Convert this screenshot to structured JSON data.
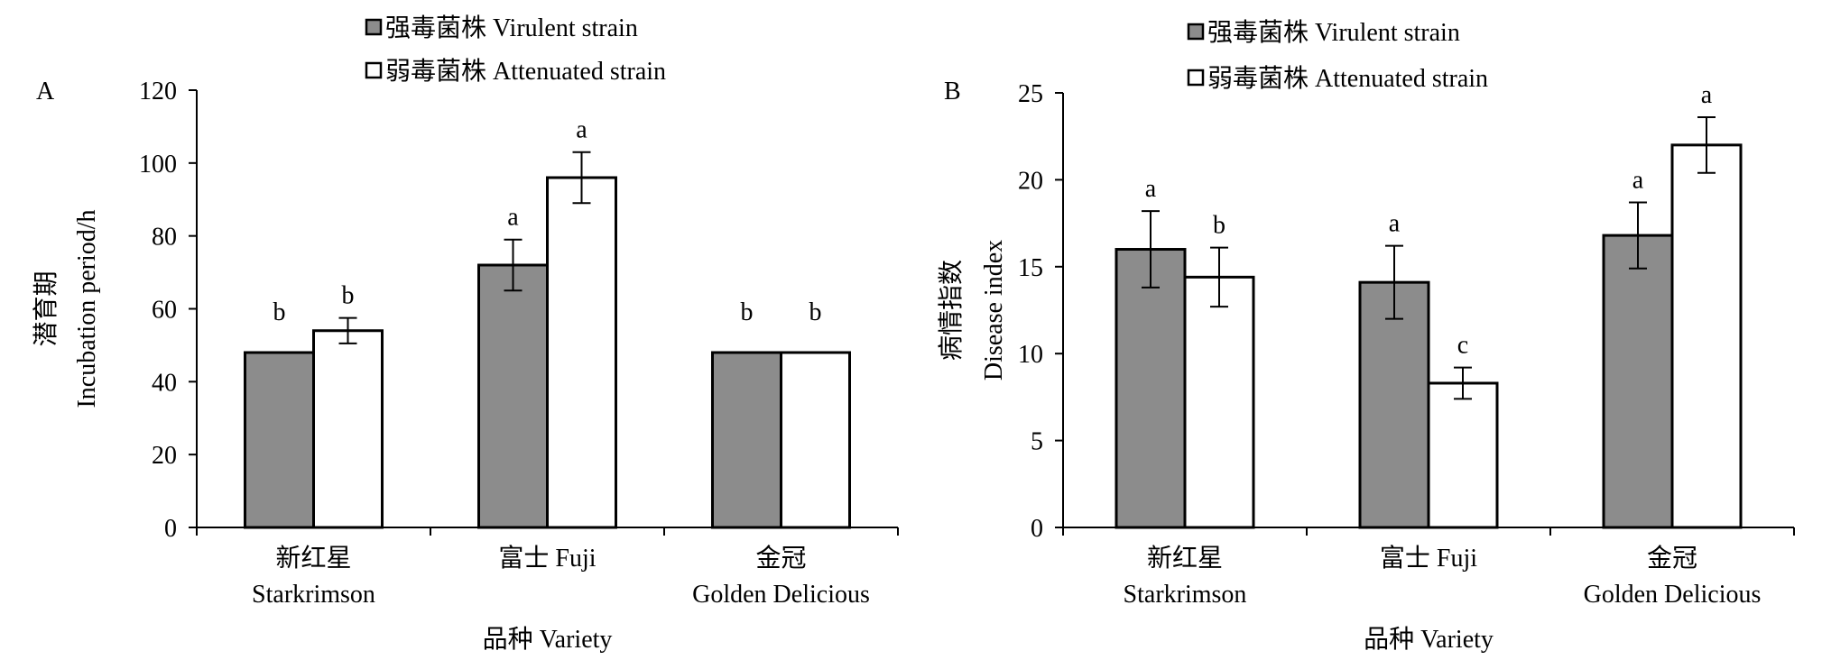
{
  "chart_data": [
    {
      "type": "bar",
      "panel_label": "A",
      "categories": [
        "新红星 Starkrimson",
        "富士 Fuji",
        "金冠 Golden Delicious"
      ],
      "category_lines": [
        [
          "新红星",
          "Starkrimson"
        ],
        [
          "富士 Fuji"
        ],
        [
          "金冠",
          "Golden Delicious"
        ]
      ],
      "series": [
        {
          "name": "强毒菌株 Virulent strain",
          "values": [
            48,
            72,
            48
          ],
          "errors": [
            0,
            7,
            0
          ],
          "letters": [
            "b",
            "a",
            "b"
          ]
        },
        {
          "name": "弱毒菌株  Attenuated strain",
          "values": [
            54,
            96,
            48
          ],
          "errors": [
            3.5,
            7,
            0
          ],
          "letters": [
            "b",
            "a",
            "b"
          ]
        }
      ],
      "ylabel": [
        "潜育期",
        "Incubation period/h"
      ],
      "xlabel": "品种 Variety",
      "ylim": [
        0,
        120
      ],
      "yticks": [
        0,
        20,
        40,
        60,
        80,
        100,
        120
      ],
      "legend_position": "top-center",
      "grid": false
    },
    {
      "type": "bar",
      "panel_label": "B",
      "categories": [
        "新红星 Starkrimson",
        "富士 Fuji",
        "金冠 Golden Delicious"
      ],
      "category_lines": [
        [
          "新红星",
          "Starkrimson"
        ],
        [
          "富士 Fuji"
        ],
        [
          "金冠",
          "Golden Delicious"
        ]
      ],
      "series": [
        {
          "name": "强毒菌株 Virulent strain",
          "values": [
            16.0,
            14.1,
            16.8
          ],
          "errors": [
            2.2,
            2.1,
            1.9
          ],
          "letters": [
            "a",
            "a",
            "a"
          ]
        },
        {
          "name": "弱毒菌株  Attenuated strain",
          "values": [
            14.4,
            8.3,
            22.0
          ],
          "errors": [
            1.7,
            0.9,
            1.6
          ],
          "letters": [
            "b",
            "c",
            "a"
          ]
        }
      ],
      "ylabel": [
        "病情指数",
        "Disease index"
      ],
      "xlabel": "品种 Variety",
      "ylim": [
        0,
        25
      ],
      "yticks": [
        0,
        5,
        10,
        15,
        20,
        25
      ],
      "legend_position": "top-center",
      "grid": false
    }
  ],
  "colors": {
    "virulent": "#8c8c8c",
    "attenuated": "#ffffff",
    "outline": "#000000"
  }
}
